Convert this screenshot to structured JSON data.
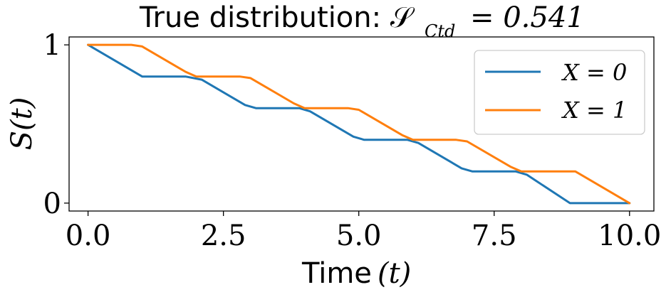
{
  "chart_data": {
    "type": "line",
    "title": "True distribution: 𝒮",
    "title_sub": "Ctd",
    "title_value": "= 0.541",
    "xlabel": "Time",
    "xlabel_math": "(t)",
    "ylabel": "S(t)",
    "xlim": [
      -0.35,
      10.45
    ],
    "ylim": [
      -0.05,
      1.05
    ],
    "xticks": [
      0.0,
      2.5,
      5.0,
      7.5,
      10.0
    ],
    "xtick_labels": [
      "0.0",
      "2.5",
      "5.0",
      "7.5",
      "10.0"
    ],
    "yticks": [
      0,
      1
    ],
    "ytick_labels": [
      "0",
      "1"
    ],
    "grid": false,
    "legend_position": "top-right",
    "colors": {
      "series0": "#1f77b4",
      "series1": "#ff7f0e"
    },
    "series": [
      {
        "name": "X = 0",
        "x": [
          0,
          1,
          1.8,
          2.1,
          2.9,
          3.1,
          3.9,
          4.1,
          4.9,
          5.1,
          5.9,
          6.1,
          6.9,
          7.1,
          7.9,
          8.1,
          8.9,
          9.1,
          10
        ],
        "y": [
          1.0,
          0.8,
          0.8,
          0.78,
          0.62,
          0.6,
          0.6,
          0.58,
          0.42,
          0.4,
          0.4,
          0.38,
          0.22,
          0.2,
          0.2,
          0.18,
          0.0,
          0.0,
          0.0
        ]
      },
      {
        "name": "X = 1",
        "x": [
          0,
          0.8,
          1.0,
          1.8,
          2.0,
          2.8,
          3.0,
          3.8,
          4.0,
          4.8,
          5.0,
          5.8,
          6.0,
          6.8,
          7.0,
          7.8,
          8.0,
          8.8,
          9.0,
          10
        ],
        "y": [
          1.0,
          1.0,
          0.99,
          0.83,
          0.8,
          0.8,
          0.79,
          0.63,
          0.6,
          0.6,
          0.59,
          0.43,
          0.4,
          0.4,
          0.39,
          0.23,
          0.2,
          0.2,
          0.2,
          0.0
        ]
      }
    ]
  }
}
